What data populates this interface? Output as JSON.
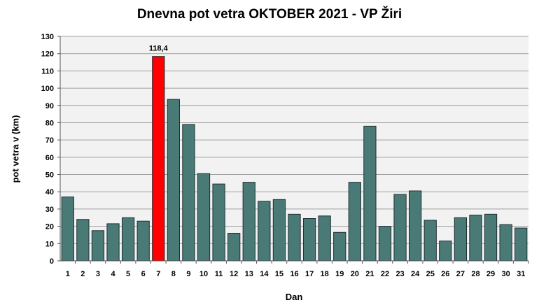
{
  "chart_data": {
    "type": "bar",
    "title": "Dnevna pot vetra OKTOBER  2021 - VP Žiri",
    "xlabel": "Dan",
    "ylabel": "pot vetra  v (km)",
    "ylim": [
      0,
      130
    ],
    "ytick_step": 10,
    "grid": true,
    "categories": [
      "1",
      "2",
      "3",
      "4",
      "5",
      "6",
      "7",
      "8",
      "9",
      "10",
      "11",
      "12",
      "13",
      "14",
      "15",
      "16",
      "17",
      "18",
      "19",
      "20",
      "21",
      "22",
      "23",
      "24",
      "25",
      "26",
      "27",
      "28",
      "29",
      "30",
      "31"
    ],
    "values": [
      37,
      24,
      17.5,
      21.5,
      25,
      23,
      118.4,
      93.5,
      79,
      50.5,
      44.5,
      16,
      45.5,
      34.5,
      35.5,
      27,
      24.5,
      26,
      16.5,
      45.5,
      78,
      20,
      38.5,
      40.5,
      23.5,
      11.5,
      25,
      26.5,
      27,
      21,
      19
    ],
    "highlight_index": 6,
    "data_labels": [
      {
        "index": 6,
        "text": "118,4"
      }
    ],
    "colors": {
      "bar": "#4a7a76",
      "bar_stroke": "#1f2f33",
      "highlight": "#ff0000",
      "plot_bg": "#f2f2f2",
      "grid": "#a0a0a0"
    }
  }
}
